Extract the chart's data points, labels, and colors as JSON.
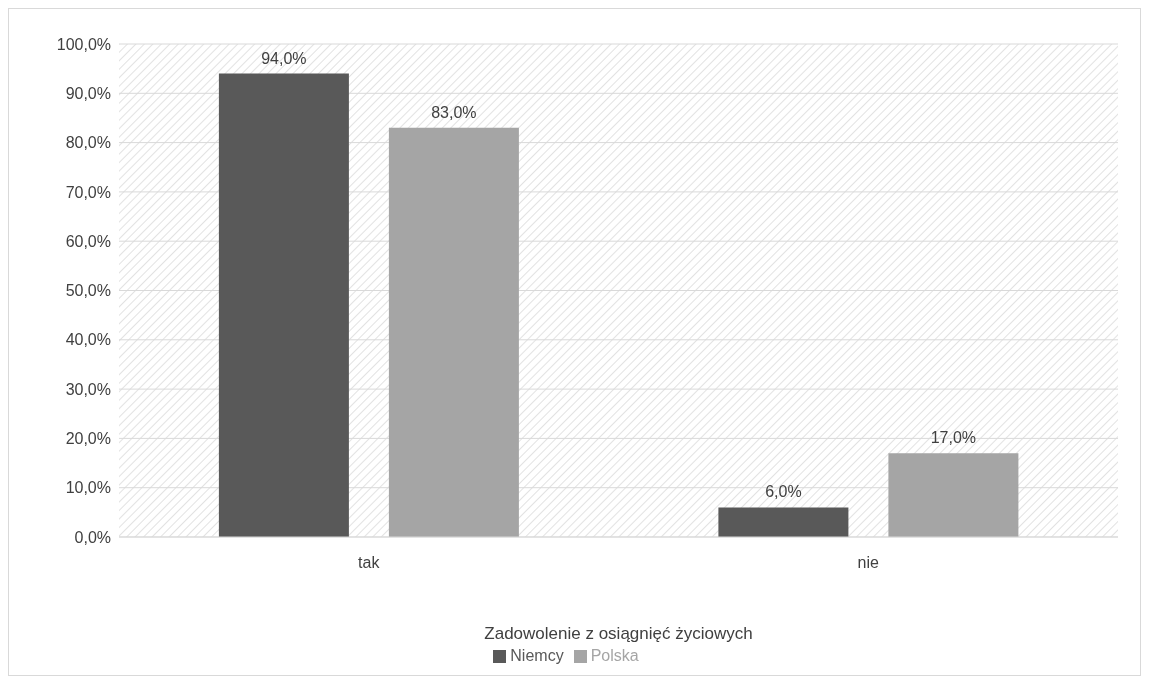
{
  "chart_data": {
    "type": "bar",
    "xlabel": "Zadowolenie z osiągnięć życiowych",
    "categories": [
      "tak",
      "nie"
    ],
    "series": [
      {
        "name": "Niemcy",
        "color": "#595959",
        "values": [
          94,
          6
        ],
        "value_labels": [
          "94,0%",
          "6,0%"
        ]
      },
      {
        "name": "Polska",
        "color": "#a5a5a5",
        "values": [
          83,
          17
        ],
        "value_labels": [
          "83,0%",
          "17,0%"
        ]
      }
    ],
    "ylim": [
      0,
      100
    ],
    "yticks": [
      {
        "value": 0,
        "label": "0,0%"
      },
      {
        "value": 10,
        "label": "10,0%"
      },
      {
        "value": 20,
        "label": "20,0%"
      },
      {
        "value": 30,
        "label": "30,0%"
      },
      {
        "value": 40,
        "label": "40,0%"
      },
      {
        "value": 50,
        "label": "50,0%"
      },
      {
        "value": 60,
        "label": "60,0%"
      },
      {
        "value": 70,
        "label": "70,0%"
      },
      {
        "value": 80,
        "label": "80,0%"
      },
      {
        "value": 90,
        "label": "90,0%"
      },
      {
        "value": 100,
        "label": "100,0%"
      }
    ],
    "grid": "y",
    "legend": "bottom"
  }
}
